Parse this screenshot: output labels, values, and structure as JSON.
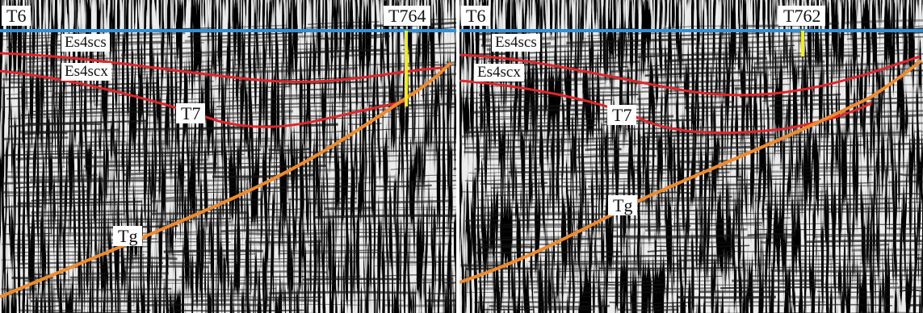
{
  "colors": {
    "horizon_t6": "#2f8fd8",
    "horizon_es4scs_es4scx": "#e0262a",
    "horizon_tg": "#f08a2a",
    "well": "#f2ee1e",
    "trace_dark": "#111111",
    "trace_light": "#e8e8e8"
  },
  "panels": [
    {
      "id": "left",
      "labels": {
        "t6": "T6",
        "well": "T764",
        "es4scs": "Es4scs",
        "es4scx": "Es4scx",
        "t7": "T7",
        "tg": "Tg"
      }
    },
    {
      "id": "right",
      "labels": {
        "t6": "T6",
        "well": "T762",
        "es4scs": "Es4scs",
        "es4scx": "Es4scx",
        "t7": "T7",
        "tg": "Tg"
      }
    }
  ]
}
